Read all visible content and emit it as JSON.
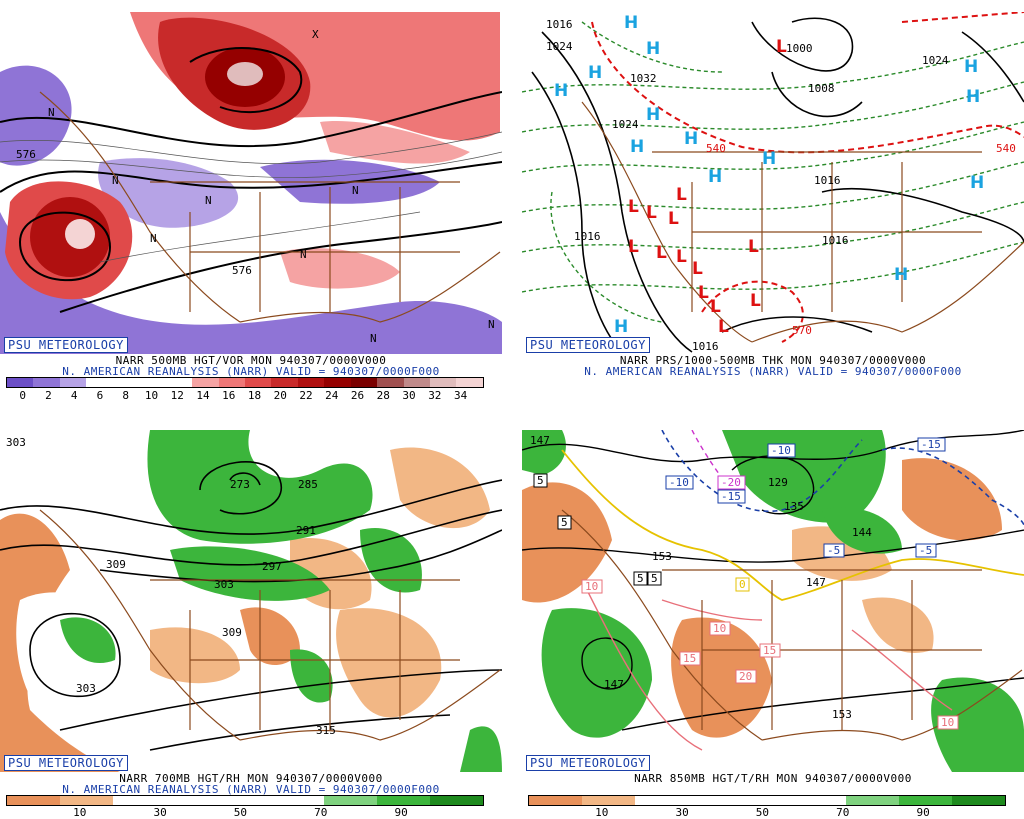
{
  "panels": {
    "tl": {
      "badge": "PSU METEOROLOGY",
      "line1": "NARR 500MB HGT/VOR MON 940307/0000V000",
      "line2": "N. AMERICAN REANALYSIS (NARR) VALID = 940307/0000F000",
      "ticks": [
        "0",
        "2",
        "4",
        "6",
        "8",
        "10",
        "12",
        "14",
        "16",
        "18",
        "20",
        "22",
        "24",
        "26",
        "28",
        "30",
        "32",
        "34"
      ],
      "labels": [
        "576",
        "576",
        "N",
        "N",
        "N",
        "N",
        "N",
        "N",
        "N",
        "N",
        "X"
      ],
      "colors": [
        "#6c4fc7",
        "#8f74d6",
        "#b6a3e6",
        "#ffffff",
        "#ffffff",
        "#ffffff",
        "#ffffff",
        "#f5a3a3",
        "#ee7777",
        "#e04a4a",
        "#c82a2a",
        "#b01010",
        "#950000",
        "#7a0000",
        "#a05050",
        "#c08a8a",
        "#e0bcbc",
        "#f4d4d4"
      ]
    },
    "tr": {
      "badge": "PSU METEOROLOGY",
      "line1": "NARR PRS/1000-500MB THK MON 940307/0000V000",
      "line2": "N. AMERICAN REANALYSIS (NARR) VALID = 940307/0000F000",
      "pressure_labels": [
        "1016",
        "1024",
        "1032",
        "1024",
        "1008",
        "1000",
        "1016",
        "1016",
        "1016",
        "1016",
        "1024"
      ],
      "thickness_labels": [
        "540",
        "540",
        "570"
      ],
      "highs": [
        "H",
        "H",
        "H",
        "H",
        "H",
        "H",
        "H",
        "H",
        "H",
        "H",
        "H",
        "H",
        "H",
        "H"
      ],
      "lows": [
        "L",
        "L",
        "L",
        "L",
        "L",
        "L",
        "L",
        "L",
        "L",
        "L",
        "L",
        "L",
        "L",
        "L"
      ]
    },
    "bl": {
      "badge": "PSU METEOROLOGY",
      "line1": "NARR 700MB HGT/RH MON 940307/0000V000",
      "line2": "N. AMERICAN REANALYSIS (NARR) VALID = 940307/0000F000",
      "ticks": [
        "10",
        "30",
        "50",
        "70",
        "90"
      ],
      "labels": [
        "303",
        "273",
        "285",
        "297",
        "291",
        "309",
        "303",
        "309",
        "303",
        "315"
      ],
      "colors": [
        "#e8915a",
        "#f2b785",
        "#ffffff",
        "#ffffff",
        "#ffffff",
        "#ffffff",
        "#7fd27f",
        "#3cb53c",
        "#1e8a1e"
      ]
    },
    "br": {
      "badge": "PSU METEOROLOGY",
      "line1": "NARR 850MB HGT/T/RH MON 940307/0000V000",
      "ticks": [
        "10",
        "30",
        "50",
        "70",
        "90"
      ],
      "height_labels": [
        "147",
        "153",
        "129",
        "135",
        "144",
        "147",
        "153",
        "147"
      ],
      "temp_labels": [
        "5",
        "5",
        "-10",
        "-20",
        "-15",
        "-10",
        "-15",
        "-5",
        "-5",
        "5",
        "5",
        "10",
        "10",
        "15",
        "15",
        "20",
        "10",
        "0"
      ],
      "colors": [
        "#e8915a",
        "#f2b785",
        "#ffffff",
        "#ffffff",
        "#ffffff",
        "#ffffff",
        "#7fd27f",
        "#3cb53c",
        "#1e8a1e"
      ]
    }
  }
}
